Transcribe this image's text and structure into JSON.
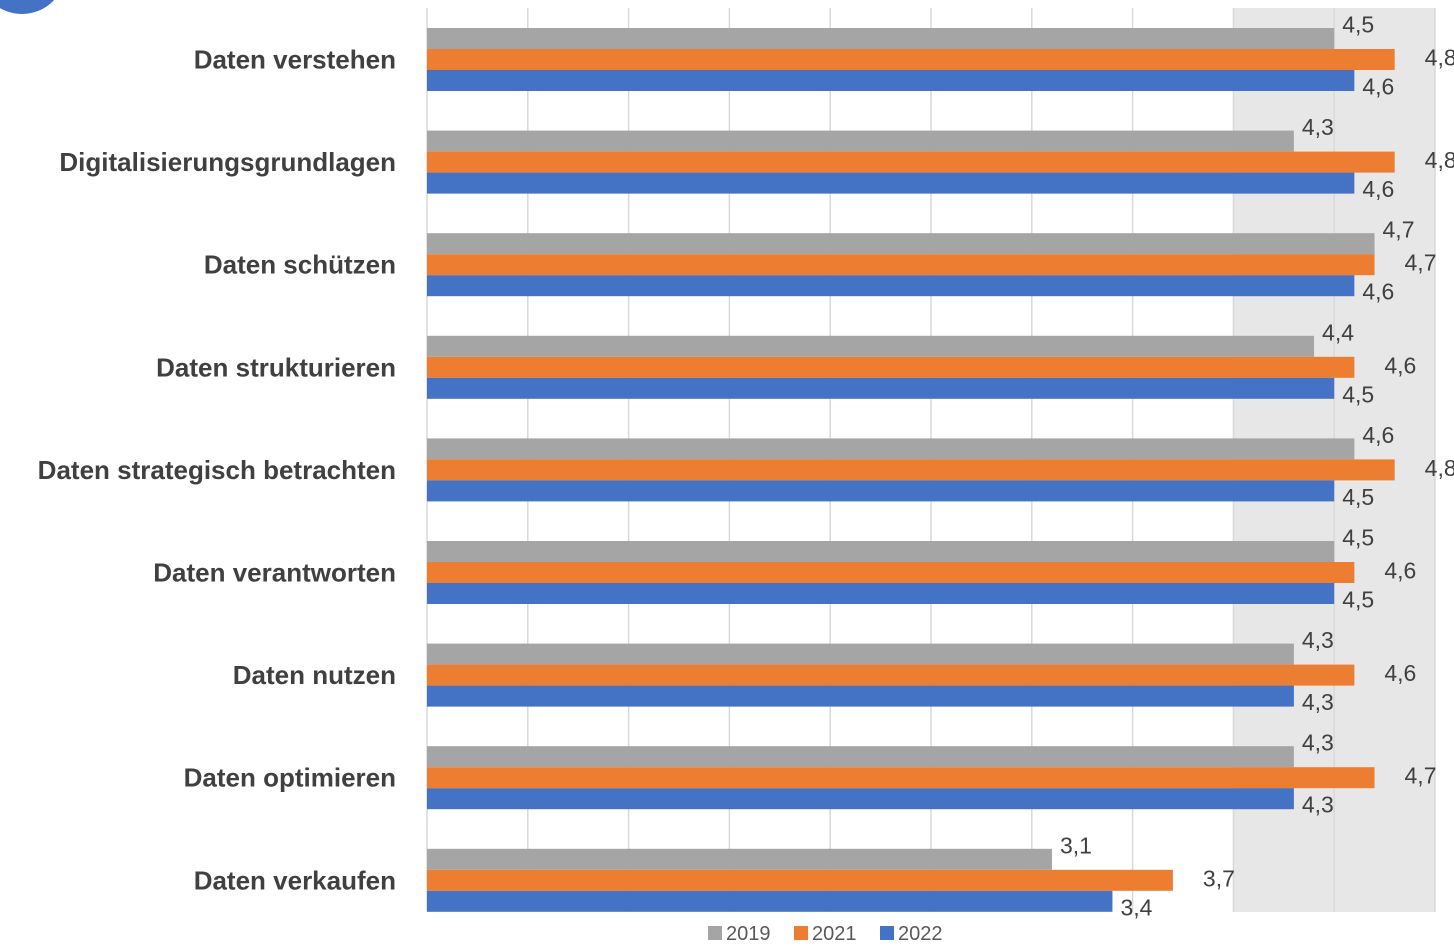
{
  "colors": {
    "2019": "#a5a5a5",
    "2021": "#ed7d31",
    "2022": "#4472c4",
    "highlight_band": "#e7e7e7",
    "gridline": "#d9d9d9",
    "badge": "#4472c4"
  },
  "chart_data": {
    "type": "bar",
    "orientation": "horizontal",
    "categories": [
      "Daten verstehen",
      "Digitalisierungsgrundlagen",
      "Daten schützen",
      "Daten strukturieren",
      "Daten strategisch betrachten",
      "Daten verantworten",
      "Daten nutzen",
      "Daten optimieren",
      "Daten verkaufen"
    ],
    "series": [
      {
        "name": "2019",
        "color": "#a5a5a5",
        "values": [
          4.5,
          4.3,
          4.7,
          4.4,
          4.6,
          4.5,
          4.3,
          4.3,
          3.1
        ],
        "labels": [
          "4,5",
          "4,3",
          "4,7",
          "4,4",
          "4,6",
          "4,5",
          "4,3",
          "4,3",
          "3,1"
        ]
      },
      {
        "name": "2021",
        "color": "#ed7d31",
        "values": [
          4.8,
          4.8,
          4.7,
          4.6,
          4.8,
          4.6,
          4.6,
          4.7,
          3.7
        ],
        "labels": [
          "4,8",
          "4,8",
          "4,7",
          "4,6",
          "4,8",
          "4,6",
          "4,6",
          "4,7",
          "3,7"
        ]
      },
      {
        "name": "2022",
        "color": "#4472c4",
        "values": [
          4.6,
          4.6,
          4.6,
          4.5,
          4.5,
          4.5,
          4.3,
          4.3,
          3.4
        ],
        "labels": [
          "4,6",
          "4,6",
          "4,6",
          "4,5",
          "4,5",
          "4,5",
          "4,3",
          "4,3",
          "3,4"
        ]
      }
    ],
    "title": "",
    "xlabel": "",
    "ylabel": "",
    "xlim": [
      0,
      5
    ],
    "tick_labels_shown": false,
    "highlight_range": [
      4,
      5
    ],
    "grid": true,
    "legend": "bottom"
  }
}
